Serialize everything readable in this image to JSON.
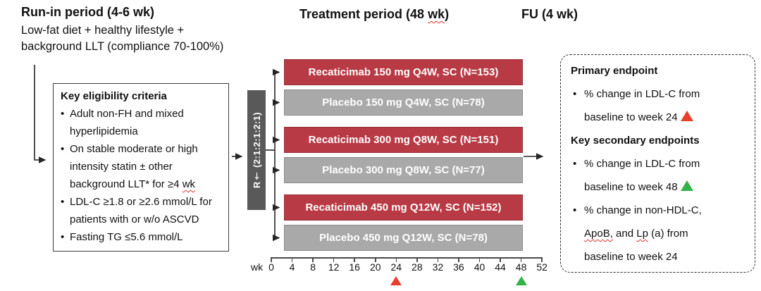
{
  "header": {
    "runin_title": "Run-in period (4-6 wk)",
    "runin_sub1": "Low-fat diet + healthy lifestyle +",
    "runin_sub2": "background LLT (compliance 70-100%)",
    "treatment_title_segments": [
      {
        "t": "Treatment period (48 "
      },
      {
        "t": "wk",
        "wavy": true
      },
      {
        "t": ")"
      }
    ],
    "fu_title": "FU (4 wk)"
  },
  "eligibility": {
    "title": "Key eligibility criteria",
    "bullets": [
      [
        {
          "t": "Adult non-FH and mixed"
        },
        {
          "br": true
        },
        {
          "t": "hyperlipidemia"
        }
      ],
      [
        {
          "t": "On stable moderate or high"
        },
        {
          "br": true
        },
        {
          "t": "intensity statin ± other"
        },
        {
          "br": true
        },
        {
          "t": "background LLT* for ≥4 "
        },
        {
          "t": "wk",
          "wavy": true
        }
      ],
      [
        {
          "t": "LDL-C ≥1.8 or ≥2.6 mmol/L for"
        },
        {
          "br": true
        },
        {
          "t": "patients with or w/o ASCVD"
        }
      ],
      [
        {
          "t": "Fasting TG ≤5.6 mmol/L"
        }
      ]
    ]
  },
  "randomization": {
    "label": "R† (2:1:2:1:2:1)"
  },
  "arms": [
    {
      "label": "Recaticimab 150 mg Q4W, SC (N=153)",
      "type": "active"
    },
    {
      "label": "Placebo 150 mg Q4W, SC (N=78)",
      "type": "placebo"
    },
    {
      "label": "Recaticimab 300 mg Q8W, SC (N=151)",
      "type": "active"
    },
    {
      "label": "Placebo 300 mg Q8W, SC (N=77)",
      "type": "placebo"
    },
    {
      "label": "Recaticimab 450 mg Q12W, SC (N=152)",
      "type": "active"
    },
    {
      "label": "Placebo 450 mg Q12W, SC (N=78)",
      "type": "placebo"
    }
  ],
  "timeline": {
    "unit_label": "wk",
    "tick_labels": [
      "0",
      "4",
      "8",
      "12",
      "16",
      "20",
      "24",
      "28",
      "32",
      "36",
      "40",
      "44",
      "48",
      "52"
    ],
    "markers": [
      {
        "week": 24,
        "kind": "red"
      },
      {
        "week": 48,
        "kind": "green"
      }
    ]
  },
  "endpoints": {
    "sections": [
      {
        "title": "Primary endpoint",
        "items": [
          {
            "segments": [
              {
                "t": "% change in LDL-C from"
              },
              {
                "br": true
              },
              {
                "t": "baseline to week 24"
              }
            ],
            "marker": "red"
          }
        ]
      },
      {
        "title": "Key secondary endpoints",
        "items": [
          {
            "segments": [
              {
                "t": "% change in LDL-C from"
              },
              {
                "br": true
              },
              {
                "t": "baseline to week 48"
              }
            ],
            "marker": "green"
          },
          {
            "segments": [
              {
                "t": "% change in non-HDL-C,"
              },
              {
                "br": true
              },
              {
                "t": "ApoB,",
                "wavy": true
              },
              {
                "t": " and "
              },
              {
                "t": "Lp",
                "wavy": true
              },
              {
                "t": " (a) from"
              },
              {
                "br": true
              },
              {
                "t": "baseline to week 24"
              }
            ],
            "marker": null
          }
        ]
      }
    ]
  },
  "colors": {
    "active_arm": "#b83a44",
    "placebo_arm": "#a9a9a9",
    "randomization_box": "#595959",
    "marker_red": "#e8402d",
    "marker_green": "#33b24b",
    "wavy_underline": "#e03131",
    "line": "#262626"
  }
}
